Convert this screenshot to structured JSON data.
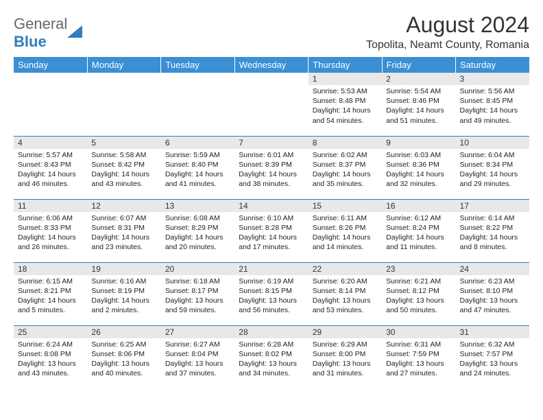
{
  "logo": {
    "general": "General",
    "blue": "Blue"
  },
  "title": "August 2024",
  "location": "Topolita, Neamt County, Romania",
  "colors": {
    "header_bg": "#3b8fd4",
    "header_text": "#ffffff",
    "border": "#2d7fc1",
    "daynum_bg": "#e8e8e8",
    "text": "#1a1a1a",
    "logo_blue": "#2d7fc1"
  },
  "typography": {
    "title_fontsize": 32,
    "location_fontsize": 16,
    "dayheader_fontsize": 13,
    "daynum_fontsize": 12,
    "info_fontsize": 10.5
  },
  "day_headers": [
    "Sunday",
    "Monday",
    "Tuesday",
    "Wednesday",
    "Thursday",
    "Friday",
    "Saturday"
  ],
  "weeks": [
    [
      {
        "n": "",
        "sr": "",
        "ss": "",
        "dl": ""
      },
      {
        "n": "",
        "sr": "",
        "ss": "",
        "dl": ""
      },
      {
        "n": "",
        "sr": "",
        "ss": "",
        "dl": ""
      },
      {
        "n": "",
        "sr": "",
        "ss": "",
        "dl": ""
      },
      {
        "n": "1",
        "sr": "Sunrise: 5:53 AM",
        "ss": "Sunset: 8:48 PM",
        "dl": "Daylight: 14 hours and 54 minutes."
      },
      {
        "n": "2",
        "sr": "Sunrise: 5:54 AM",
        "ss": "Sunset: 8:46 PM",
        "dl": "Daylight: 14 hours and 51 minutes."
      },
      {
        "n": "3",
        "sr": "Sunrise: 5:56 AM",
        "ss": "Sunset: 8:45 PM",
        "dl": "Daylight: 14 hours and 49 minutes."
      }
    ],
    [
      {
        "n": "4",
        "sr": "Sunrise: 5:57 AM",
        "ss": "Sunset: 8:43 PM",
        "dl": "Daylight: 14 hours and 46 minutes."
      },
      {
        "n": "5",
        "sr": "Sunrise: 5:58 AM",
        "ss": "Sunset: 8:42 PM",
        "dl": "Daylight: 14 hours and 43 minutes."
      },
      {
        "n": "6",
        "sr": "Sunrise: 5:59 AM",
        "ss": "Sunset: 8:40 PM",
        "dl": "Daylight: 14 hours and 41 minutes."
      },
      {
        "n": "7",
        "sr": "Sunrise: 6:01 AM",
        "ss": "Sunset: 8:39 PM",
        "dl": "Daylight: 14 hours and 38 minutes."
      },
      {
        "n": "8",
        "sr": "Sunrise: 6:02 AM",
        "ss": "Sunset: 8:37 PM",
        "dl": "Daylight: 14 hours and 35 minutes."
      },
      {
        "n": "9",
        "sr": "Sunrise: 6:03 AM",
        "ss": "Sunset: 8:36 PM",
        "dl": "Daylight: 14 hours and 32 minutes."
      },
      {
        "n": "10",
        "sr": "Sunrise: 6:04 AM",
        "ss": "Sunset: 8:34 PM",
        "dl": "Daylight: 14 hours and 29 minutes."
      }
    ],
    [
      {
        "n": "11",
        "sr": "Sunrise: 6:06 AM",
        "ss": "Sunset: 8:33 PM",
        "dl": "Daylight: 14 hours and 26 minutes."
      },
      {
        "n": "12",
        "sr": "Sunrise: 6:07 AM",
        "ss": "Sunset: 8:31 PM",
        "dl": "Daylight: 14 hours and 23 minutes."
      },
      {
        "n": "13",
        "sr": "Sunrise: 6:08 AM",
        "ss": "Sunset: 8:29 PM",
        "dl": "Daylight: 14 hours and 20 minutes."
      },
      {
        "n": "14",
        "sr": "Sunrise: 6:10 AM",
        "ss": "Sunset: 8:28 PM",
        "dl": "Daylight: 14 hours and 17 minutes."
      },
      {
        "n": "15",
        "sr": "Sunrise: 6:11 AM",
        "ss": "Sunset: 8:26 PM",
        "dl": "Daylight: 14 hours and 14 minutes."
      },
      {
        "n": "16",
        "sr": "Sunrise: 6:12 AM",
        "ss": "Sunset: 8:24 PM",
        "dl": "Daylight: 14 hours and 11 minutes."
      },
      {
        "n": "17",
        "sr": "Sunrise: 6:14 AM",
        "ss": "Sunset: 8:22 PM",
        "dl": "Daylight: 14 hours and 8 minutes."
      }
    ],
    [
      {
        "n": "18",
        "sr": "Sunrise: 6:15 AM",
        "ss": "Sunset: 8:21 PM",
        "dl": "Daylight: 14 hours and 5 minutes."
      },
      {
        "n": "19",
        "sr": "Sunrise: 6:16 AM",
        "ss": "Sunset: 8:19 PM",
        "dl": "Daylight: 14 hours and 2 minutes."
      },
      {
        "n": "20",
        "sr": "Sunrise: 6:18 AM",
        "ss": "Sunset: 8:17 PM",
        "dl": "Daylight: 13 hours and 59 minutes."
      },
      {
        "n": "21",
        "sr": "Sunrise: 6:19 AM",
        "ss": "Sunset: 8:15 PM",
        "dl": "Daylight: 13 hours and 56 minutes."
      },
      {
        "n": "22",
        "sr": "Sunrise: 6:20 AM",
        "ss": "Sunset: 8:14 PM",
        "dl": "Daylight: 13 hours and 53 minutes."
      },
      {
        "n": "23",
        "sr": "Sunrise: 6:21 AM",
        "ss": "Sunset: 8:12 PM",
        "dl": "Daylight: 13 hours and 50 minutes."
      },
      {
        "n": "24",
        "sr": "Sunrise: 6:23 AM",
        "ss": "Sunset: 8:10 PM",
        "dl": "Daylight: 13 hours and 47 minutes."
      }
    ],
    [
      {
        "n": "25",
        "sr": "Sunrise: 6:24 AM",
        "ss": "Sunset: 8:08 PM",
        "dl": "Daylight: 13 hours and 43 minutes."
      },
      {
        "n": "26",
        "sr": "Sunrise: 6:25 AM",
        "ss": "Sunset: 8:06 PM",
        "dl": "Daylight: 13 hours and 40 minutes."
      },
      {
        "n": "27",
        "sr": "Sunrise: 6:27 AM",
        "ss": "Sunset: 8:04 PM",
        "dl": "Daylight: 13 hours and 37 minutes."
      },
      {
        "n": "28",
        "sr": "Sunrise: 6:28 AM",
        "ss": "Sunset: 8:02 PM",
        "dl": "Daylight: 13 hours and 34 minutes."
      },
      {
        "n": "29",
        "sr": "Sunrise: 6:29 AM",
        "ss": "Sunset: 8:00 PM",
        "dl": "Daylight: 13 hours and 31 minutes."
      },
      {
        "n": "30",
        "sr": "Sunrise: 6:31 AM",
        "ss": "Sunset: 7:59 PM",
        "dl": "Daylight: 13 hours and 27 minutes."
      },
      {
        "n": "31",
        "sr": "Sunrise: 6:32 AM",
        "ss": "Sunset: 7:57 PM",
        "dl": "Daylight: 13 hours and 24 minutes."
      }
    ]
  ]
}
